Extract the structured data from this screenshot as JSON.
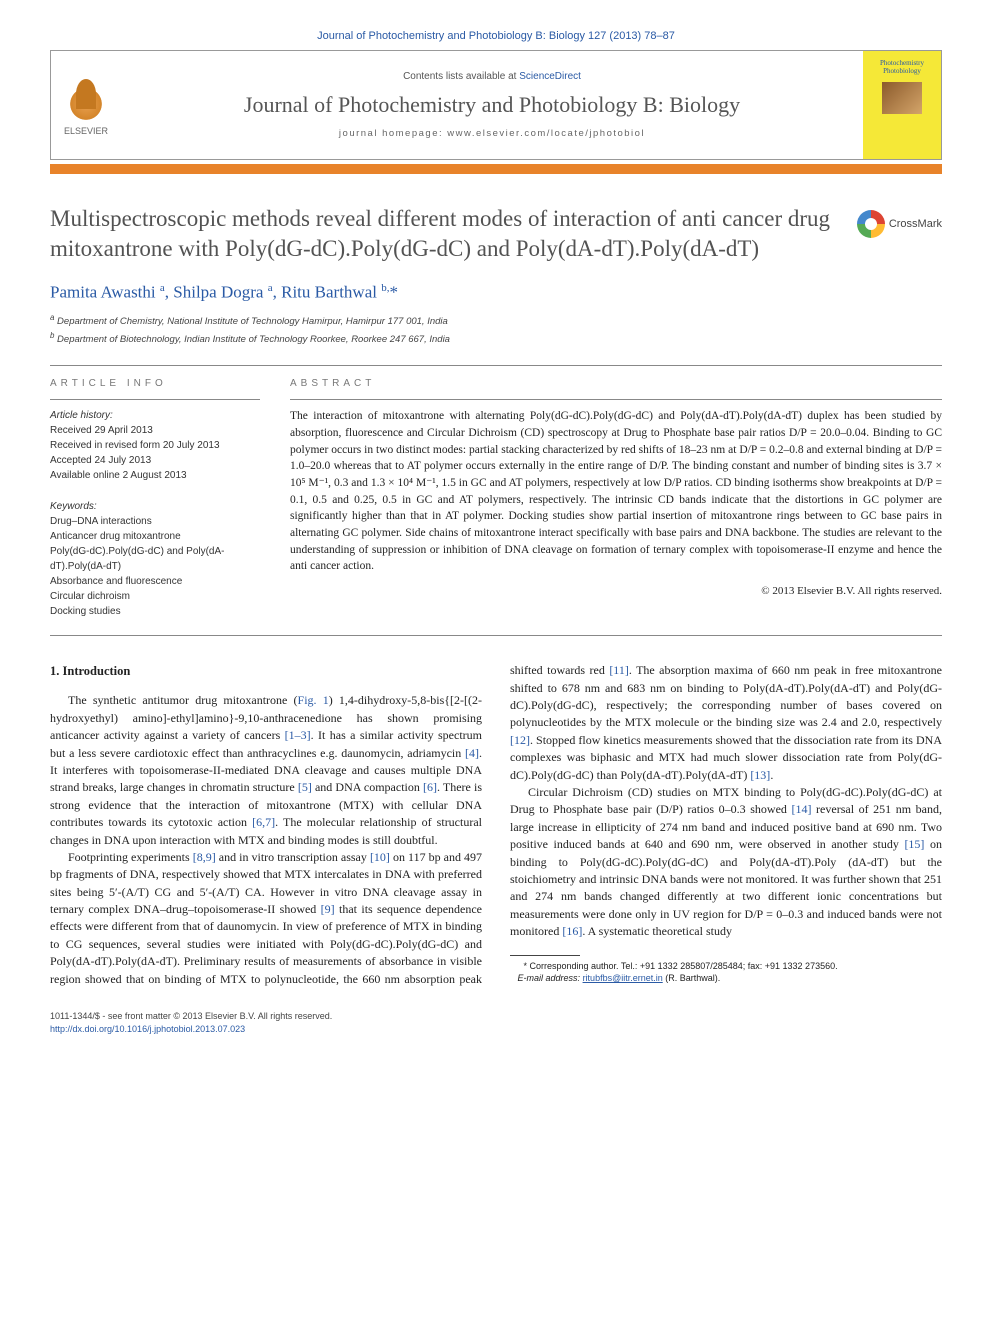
{
  "header": {
    "citation": "Journal of Photochemistry and Photobiology B: Biology 127 (2013) 78–87",
    "contents_prefix": "Contents lists available at ",
    "contents_link": "ScienceDirect",
    "journal_name": "Journal of Photochemistry and Photobiology B: Biology",
    "homepage_prefix": "journal homepage: ",
    "homepage_url": "www.elsevier.com/locate/jphotobiol",
    "elsevier_label": "ELSEVIER",
    "cover_title": "Photochemistry Photobiology"
  },
  "colors": {
    "link": "#2a5aa5",
    "bar": "#e8832a",
    "title_text": "#525252",
    "cover_bg": "#f5e837"
  },
  "crossmark": {
    "label": "CrossMark"
  },
  "article": {
    "title": "Multispectroscopic methods reveal different modes of interaction of anti cancer drug mitoxantrone with Poly(dG-dC).Poly(dG-dC) and Poly(dA-dT).Poly(dA-dT)",
    "authors_html": "Pamita Awasthi <sup>a</sup>, Shilpa Dogra <sup>a</sup>, Ritu Barthwal <sup>b,</sup><span class='corr'>*</span>",
    "affiliations": {
      "a": "Department of Chemistry, National Institute of Technology Hamirpur, Hamirpur 177 001, India",
      "b": "Department of Biotechnology, Indian Institute of Technology Roorkee, Roorkee 247 667, India"
    }
  },
  "article_info": {
    "heading": "ARTICLE INFO",
    "history_label": "Article history:",
    "received": "Received 29 April 2013",
    "revised": "Received in revised form 20 July 2013",
    "accepted": "Accepted 24 July 2013",
    "online": "Available online 2 August 2013",
    "keywords_label": "Keywords:",
    "keywords": [
      "Drug–DNA interactions",
      "Anticancer drug mitoxantrone",
      "Poly(dG-dC).Poly(dG-dC) and Poly(dA-dT).Poly(dA-dT)",
      "Absorbance and fluorescence",
      "Circular dichroism",
      "Docking studies"
    ]
  },
  "abstract": {
    "heading": "ABSTRACT",
    "text": "The interaction of mitoxantrone with alternating Poly(dG-dC).Poly(dG-dC) and Poly(dA-dT).Poly(dA-dT) duplex has been studied by absorption, fluorescence and Circular Dichroism (CD) spectroscopy at Drug to Phosphate base pair ratios D/P = 20.0–0.04. Binding to GC polymer occurs in two distinct modes: partial stacking characterized by red shifts of 18–23 nm at D/P = 0.2–0.8 and external binding at D/P = 1.0–20.0 whereas that to AT polymer occurs externally in the entire range of D/P. The binding constant and number of binding sites is 3.7 × 10⁵ M⁻¹, 0.3 and 1.3 × 10⁴ M⁻¹, 1.5 in GC and AT polymers, respectively at low D/P ratios. CD binding isotherms show breakpoints at D/P = 0.1, 0.5 and 0.25, 0.5 in GC and AT polymers, respectively. The intrinsic CD bands indicate that the distortions in GC polymer are significantly higher than that in AT polymer. Docking studies show partial insertion of mitoxantrone rings between to GC base pairs in alternating GC polymer. Side chains of mitoxantrone interact specifically with base pairs and DNA backbone. The studies are relevant to the understanding of suppression or inhibition of DNA cleavage on formation of ternary complex with topoisomerase-II enzyme and hence the anti cancer action.",
    "copyright": "© 2013 Elsevier B.V. All rights reserved."
  },
  "body": {
    "section1_heading": "1. Introduction",
    "p1_pre": "The synthetic antitumor drug mitoxantrone (",
    "p1_figref": "Fig. 1",
    "p1a": ") 1,4-dihydroxy-5,8-bis{[2-[(2-hydroxyethyl) amino]-ethyl]amino}-9,10-anthracenedione has shown promising anticancer activity against a variety of cancers ",
    "ref_1_3": "[1–3]",
    "p1b": ". It has a similar activity spectrum but a less severe cardiotoxic effect than anthracyclines e.g. daunomycin, adriamycin ",
    "ref_4": "[4]",
    "p1c": ". It interferes with topoisomerase-II-mediated DNA cleavage and causes multiple DNA strand breaks, large changes in chromatin structure ",
    "ref_5": "[5]",
    "p1d": " and DNA compaction ",
    "ref_6": "[6]",
    "p1e": ". There is strong evidence that the interaction of mitoxantrone (MTX) with cellular DNA contributes towards its cytotoxic action ",
    "ref_6_7": "[6,7]",
    "p1f": ". The molecular relationship of structural changes in DNA upon interaction with MTX and binding modes is still doubtful.",
    "p2a": "Footprinting experiments ",
    "ref_8_9": "[8,9]",
    "p2b": " and in vitro transcription assay ",
    "ref_10": "[10]",
    "p2c": " on 117 bp and 497 bp fragments of DNA, respectively showed that MTX intercalates in DNA with preferred sites being 5′-(A/T) CG and 5′-(A/T) CA. However in vitro DNA cleavage assay in ternary complex DNA–drug–topoisomerase-II showed ",
    "ref_9": "[9]",
    "p2d": " that its sequence dependence effects were different from that of daunomycin. In view of preference of MTX in binding to CG sequences, several ",
    "p2_col2a": "studies were initiated with Poly(dG-dC).Poly(dG-dC) and Poly(dA-dT).Poly(dA-dT). Preliminary results of measurements of absorbance in visible region showed that on binding of MTX to polynucleotide, the 660 nm absorption peak shifted towards red ",
    "ref_11": "[11]",
    "p2_col2b": ". The absorption maxima of 660 nm peak in free mitoxantrone shifted to 678 nm and 683 nm on binding to Poly(dA-dT).Poly(dA-dT) and Poly(dG-dC).Poly(dG-dC), respectively; the corresponding number of bases covered on polynucleotides by the MTX molecule or the binding size was 2.4 and 2.0, respectively ",
    "ref_12": "[12]",
    "p2_col2c": ". Stopped flow kinetics measurements showed that the dissociation rate from its DNA complexes was biphasic and MTX had much slower dissociation rate from Poly(dG-dC).Poly(dG-dC) than Poly(dA-dT).Poly(dA-dT) ",
    "ref_13": "[13]",
    "p2_col2d": ".",
    "p3a": "Circular Dichroism (CD) studies on MTX binding to Poly(dG-dC).Poly(dG-dC) at Drug to Phosphate base pair (D/P) ratios 0–0.3 showed ",
    "ref_14": "[14]",
    "p3b": " reversal of 251 nm band, large increase in ellipticity of 274 nm band and induced positive band at 690 nm. Two positive induced bands at 640 and 690 nm, were observed in another study ",
    "ref_15": "[15]",
    "p3c": " on binding to Poly(dG-dC).Poly(dG-dC) and Poly(dA-dT).Poly (dA-dT) but the stoichiometry and intrinsic DNA bands were not monitored. It was further shown that 251 and 274 nm bands changed differently at two different ionic concentrations but measurements were done only in UV region for D/P = 0–0.3 and induced bands were not monitored ",
    "ref_16": "[16]",
    "p3d": ". A systematic theoretical study"
  },
  "footnote": {
    "corr_label": "* Corresponding author. Tel.: +91 1332 285807/285484; fax: +91 1332 273560.",
    "email_label": "E-mail address:",
    "email": "ritubfbs@iitr.ernet.in",
    "email_name": "(R. Barthwal)."
  },
  "footer": {
    "issn": "1011-1344/$ - see front matter © 2013 Elsevier B.V. All rights reserved.",
    "doi": "http://dx.doi.org/10.1016/j.jphotobiol.2013.07.023"
  }
}
